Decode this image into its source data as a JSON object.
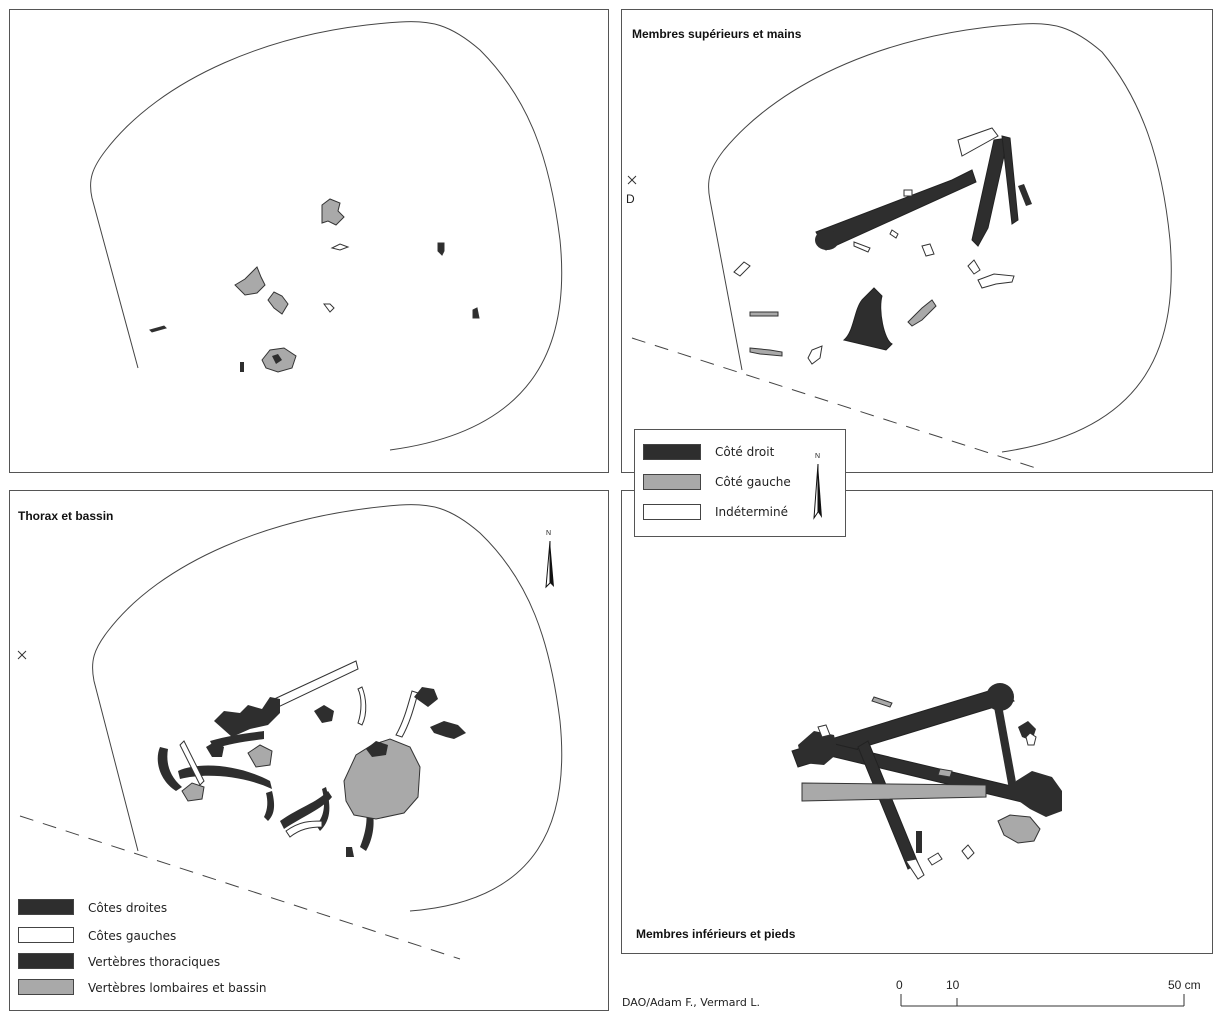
{
  "panels": {
    "top_left": {
      "title": ""
    },
    "top_right": {
      "title": "Membres supérieurs et mains",
      "marker_label": "D"
    },
    "bottom_left": {
      "title": "Thorax et bassin"
    },
    "bottom_right": {
      "title": "Membres inférieurs et pieds"
    }
  },
  "legend_sides": {
    "items": [
      {
        "label": "Côté droit",
        "swatch": "dark"
      },
      {
        "label": "Côté gauche",
        "swatch": "grey"
      },
      {
        "label": "Indéterminé",
        "swatch": "white"
      }
    ],
    "north_label": "N"
  },
  "legend_thorax": {
    "items": [
      {
        "label": "Côtes droites",
        "swatch": "dark"
      },
      {
        "label": "Côtes gauches",
        "swatch": "white"
      },
      {
        "label": "Vertèbres thoraciques",
        "swatch": "dark"
      },
      {
        "label": "Vertèbres lombaires et bassin",
        "swatch": "grey"
      }
    ],
    "north_label": "N"
  },
  "scale_bar": {
    "labels": [
      "0",
      "10",
      "50 cm"
    ]
  },
  "credit": "DAO/Adam F., Vermard L.",
  "colors": {
    "right_side": "#2e2e2e",
    "left_side": "#a9a9a9",
    "undetermined": "#ffffff",
    "outline": "#444444"
  }
}
